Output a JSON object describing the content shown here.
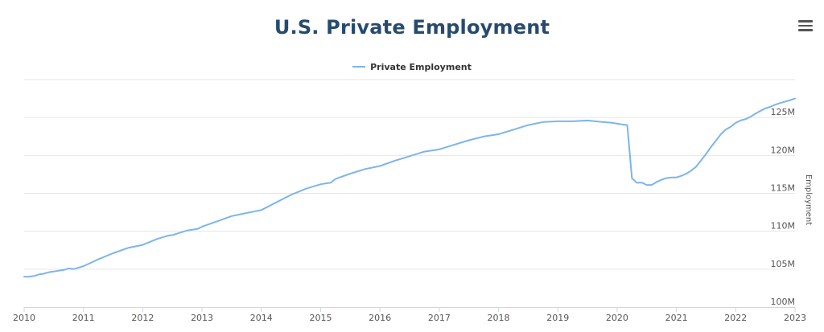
{
  "title": "U.S. Private Employment",
  "menu_icon": "hamburger-menu-icon",
  "colors": {
    "series": "#7cb5ec",
    "title": "#274b6d",
    "grid": "#e6e6e6"
  },
  "chart_data": {
    "type": "line",
    "title": "U.S. Private Employment",
    "xlabel": "",
    "ylabel": "Employment",
    "y_axis_side": "right",
    "ylim": [
      100,
      130
    ],
    "y_unit": "M",
    "yticks": [
      100,
      105,
      110,
      115,
      120,
      125
    ],
    "ytick_labels": [
      "100M",
      "105M",
      "110M",
      "115M",
      "120M",
      "125M"
    ],
    "xlim": [
      2010,
      2023
    ],
    "xticks": [
      2010,
      2011,
      2012,
      2013,
      2014,
      2015,
      2016,
      2017,
      2018,
      2019,
      2020,
      2021,
      2022,
      2023
    ],
    "xtick_labels": [
      "2010",
      "2011",
      "2012",
      "2013",
      "2014",
      "2015",
      "2016",
      "2017",
      "2018",
      "2019",
      "2020",
      "2021",
      "2022",
      "2023"
    ],
    "grid": true,
    "legend": "top-center",
    "series": [
      {
        "name": "Private Employment",
        "x": [
          2010.0,
          2010.08,
          2010.17,
          2010.25,
          2010.33,
          2010.42,
          2010.5,
          2010.58,
          2010.67,
          2010.75,
          2010.83,
          2010.92,
          2011.0,
          2011.25,
          2011.5,
          2011.75,
          2012.0,
          2012.25,
          2012.42,
          2012.5,
          2012.75,
          2012.92,
          2013.0,
          2013.25,
          2013.5,
          2013.75,
          2014.0,
          2014.25,
          2014.5,
          2014.75,
          2015.0,
          2015.08,
          2015.17,
          2015.25,
          2015.5,
          2015.75,
          2016.0,
          2016.25,
          2016.5,
          2016.75,
          2016.92,
          2017.0,
          2017.25,
          2017.5,
          2017.75,
          2017.92,
          2018.0,
          2018.25,
          2018.5,
          2018.75,
          2019.0,
          2019.25,
          2019.5,
          2019.75,
          2019.92,
          2020.0,
          2020.08,
          2020.17,
          2020.25,
          2020.33,
          2020.42,
          2020.5,
          2020.58,
          2020.67,
          2020.75,
          2020.83,
          2020.92,
          2021.0,
          2021.08,
          2021.17,
          2021.25,
          2021.33,
          2021.42,
          2021.5,
          2021.58,
          2021.67,
          2021.75,
          2021.83,
          2021.92,
          2022.0,
          2022.08,
          2022.17,
          2022.25,
          2022.33,
          2022.42,
          2022.5,
          2022.58,
          2022.67,
          2022.75,
          2022.83,
          2022.92,
          2023.0
        ],
        "values": [
          104.0,
          104.0,
          104.1,
          104.3,
          104.4,
          104.6,
          104.7,
          104.8,
          104.9,
          105.1,
          105.0,
          105.2,
          105.4,
          106.3,
          107.1,
          107.8,
          108.2,
          109.0,
          109.4,
          109.5,
          110.1,
          110.3,
          110.6,
          111.3,
          112.0,
          112.4,
          112.8,
          113.8,
          114.8,
          115.6,
          116.2,
          116.3,
          116.4,
          116.9,
          117.6,
          118.2,
          118.6,
          119.3,
          119.9,
          120.5,
          120.7,
          120.8,
          121.4,
          122.0,
          122.5,
          122.7,
          122.8,
          123.4,
          124.0,
          124.4,
          124.5,
          124.5,
          124.6,
          124.4,
          124.3,
          124.2,
          124.1,
          124.0,
          117.0,
          116.4,
          116.4,
          116.1,
          116.1,
          116.5,
          116.8,
          117.0,
          117.1,
          117.1,
          117.3,
          117.6,
          118.0,
          118.5,
          119.4,
          120.2,
          121.1,
          122.0,
          122.8,
          123.4,
          123.8,
          124.3,
          124.6,
          124.8,
          125.1,
          125.5,
          125.9,
          126.2,
          126.4,
          126.7,
          126.9,
          127.1,
          127.3,
          127.5
        ]
      }
    ]
  }
}
